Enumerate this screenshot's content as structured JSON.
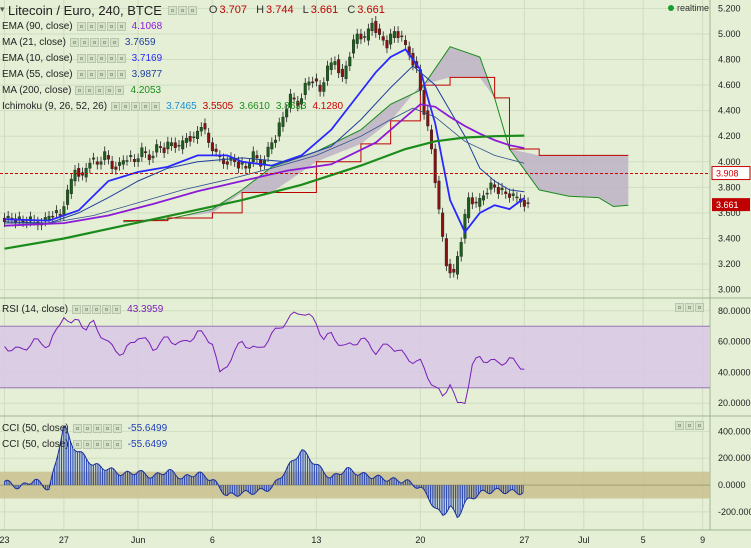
{
  "header": {
    "title": "Litecoin / Euro, 240, BTCE",
    "ohlc": [
      {
        "label": "O",
        "value": "3.707"
      },
      {
        "label": "H",
        "value": "3.744"
      },
      {
        "label": "L",
        "value": "3.661"
      },
      {
        "label": "C",
        "value": "3.661"
      }
    ],
    "realtime_label": "realtime"
  },
  "indicators": [
    {
      "name": "EMA (90, close)",
      "values": [
        {
          "text": "4.1068",
          "color": "#8c1ad6"
        }
      ]
    },
    {
      "name": "MA (21, close)",
      "values": [
        {
          "text": "3.7659",
          "color": "#1f3f9e"
        }
      ]
    },
    {
      "name": "EMA (10, close)",
      "values": [
        {
          "text": "3.7169",
          "color": "#2929ff"
        }
      ]
    },
    {
      "name": "EMA (55, close)",
      "values": [
        {
          "text": "3.9877",
          "color": "#1f3f9e"
        }
      ]
    },
    {
      "name": "MA (200, close)",
      "values": [
        {
          "text": "4.2053",
          "color": "#1b8c1b"
        }
      ]
    },
    {
      "name": "Ichimoku (9, 26, 52, 26)",
      "values": [
        {
          "text": "3.7465",
          "color": "#1a8fd6"
        },
        {
          "text": "3.5505",
          "color": "#c00000"
        },
        {
          "text": "3.6610",
          "color": "#1b8c1b"
        },
        {
          "text": "3.8633",
          "color": "#1b8c1b"
        },
        {
          "text": "4.1280",
          "color": "#d00000"
        }
      ]
    }
  ],
  "rsi_legend": {
    "name": "RSI (14, close)",
    "value": "43.3959",
    "color": "#7a1fb8"
  },
  "cci_legends": [
    {
      "name": "CCI (50, close)",
      "value": "-55.6499",
      "color": "#1f3fb8"
    },
    {
      "name": "CCI (50, close)",
      "value": "-55.6499",
      "color": "#1f3fb8"
    }
  ],
  "colors": {
    "background": "#e4efd6",
    "grid": "#cfddc1",
    "candle_up": "#1a5f1a",
    "candle_down": "#8a1010",
    "ema90": "#8c1ad6",
    "ema10": "#2929ff",
    "ma21": "#1f3f9e",
    "ma200": "#1b8c1b",
    "kijun": "#c00000",
    "senkou_b": "#c00000",
    "cloud": "#b9a9c4",
    "rsi": "#7a1fb8",
    "rsi_band": "#d8c9e6",
    "cci": "#1f3fb8",
    "cci_band": "#c9c08f"
  },
  "chart_data": [
    {
      "type": "line",
      "title": "Litecoin / Euro, 240, BTCE",
      "x_ticks": [
        "23",
        "27",
        "Jun",
        "6",
        "13",
        "20",
        "27",
        "Jul",
        "5",
        "9"
      ],
      "x_tick_days": [
        -8,
        -4,
        1,
        6,
        13,
        20,
        27,
        31,
        35,
        39
      ],
      "x_range": [
        -8.3,
        39.5
      ],
      "ylim": [
        2.95,
        5.25
      ],
      "y_ticks": [
        "3.000",
        "3.200",
        "3.400",
        "3.600",
        "3.800",
        "4.000",
        "4.200",
        "4.400",
        "4.600",
        "4.800",
        "5.000",
        "5.200"
      ],
      "y_tick_values": [
        3.0,
        3.2,
        3.4,
        3.6,
        3.8,
        4.0,
        4.2,
        4.4,
        4.6,
        4.8,
        5.0,
        5.2
      ],
      "reference_line": {
        "value": 3.908,
        "label": "3.908"
      },
      "last_price": {
        "value": 3.661,
        "label": "3.661"
      },
      "grid": true,
      "series": [
        {
          "name": "EMA (10, close)",
          "x": [
            -8,
            -5,
            -3,
            -1,
            1,
            3,
            5,
            7,
            8,
            10,
            12,
            14,
            16,
            17,
            18,
            19,
            20,
            20.5,
            21,
            21.5,
            22,
            23,
            24,
            25,
            26,
            27
          ],
          "y": [
            3.55,
            3.54,
            3.62,
            3.85,
            3.92,
            3.96,
            4.05,
            4.05,
            4.0,
            3.97,
            4.05,
            4.25,
            4.55,
            4.7,
            4.82,
            4.88,
            4.72,
            4.5,
            4.3,
            4.0,
            3.7,
            3.45,
            3.6,
            3.66,
            3.63,
            3.717
          ]
        },
        {
          "name": "MA (21, close)",
          "x": [
            -8,
            -5,
            -3,
            -1,
            1,
            3,
            5,
            8,
            11,
            14,
            16,
            18,
            19.5,
            21,
            22,
            23,
            24,
            25,
            26,
            27
          ],
          "y": [
            3.53,
            3.52,
            3.6,
            3.72,
            3.85,
            3.95,
            4.0,
            4.03,
            4.0,
            4.12,
            4.33,
            4.58,
            4.75,
            4.6,
            4.4,
            4.2,
            3.95,
            3.85,
            3.78,
            3.766
          ]
        },
        {
          "name": "EMA (55, close)",
          "x": [
            -8,
            -5,
            -2,
            1,
            4,
            7,
            10,
            13,
            16,
            18,
            19.5,
            21,
            23,
            25,
            27
          ],
          "y": [
            3.52,
            3.52,
            3.58,
            3.68,
            3.78,
            3.86,
            3.95,
            4.05,
            4.2,
            4.33,
            4.42,
            4.35,
            4.16,
            4.05,
            3.988
          ]
        },
        {
          "name": "EMA (90, close)",
          "x": [
            -8,
            -4,
            -1,
            2,
            5,
            8,
            11,
            14,
            17,
            19,
            20,
            21,
            22,
            23,
            24,
            25,
            26,
            27
          ],
          "y": [
            3.5,
            3.52,
            3.58,
            3.67,
            3.77,
            3.85,
            3.93,
            3.98,
            4.15,
            4.35,
            4.45,
            4.43,
            4.35,
            4.28,
            4.22,
            4.17,
            4.13,
            4.107
          ]
        },
        {
          "name": "MA (200, close)",
          "x": [
            -8,
            -4,
            0,
            4,
            8,
            12,
            16,
            19,
            21,
            23,
            25,
            27
          ],
          "y": [
            3.32,
            3.4,
            3.5,
            3.6,
            3.7,
            3.82,
            3.97,
            4.1,
            4.16,
            4.19,
            4.2,
            4.205
          ]
        },
        {
          "name": "Senkou A",
          "x": [
            0,
            3,
            6,
            8,
            10,
            13,
            16,
            18,
            20,
            22,
            24,
            25,
            26,
            28,
            30,
            32,
            33,
            34
          ],
          "y": [
            3.53,
            3.55,
            3.63,
            3.78,
            3.96,
            4.08,
            4.25,
            4.45,
            4.56,
            4.9,
            4.82,
            4.5,
            4.1,
            3.78,
            3.73,
            3.72,
            3.65,
            3.66
          ]
        },
        {
          "name": "Senkou B",
          "x": [
            0,
            3,
            6,
            8,
            10,
            13,
            16,
            18,
            20,
            22,
            24,
            25,
            26,
            28,
            30,
            32,
            33,
            34
          ],
          "y": [
            3.54,
            3.56,
            3.6,
            3.76,
            3.76,
            4.0,
            4.14,
            4.32,
            4.6,
            4.66,
            4.66,
            4.5,
            4.1,
            4.05,
            4.05,
            4.05,
            4.05,
            4.05
          ]
        }
      ],
      "ohlc_x": [
        -8,
        -7.5,
        -7,
        -6.5,
        -6,
        -5.5,
        -5,
        -4.5,
        -4,
        -3.5,
        -3,
        -2.5,
        -2,
        -1.5,
        -1,
        -0.5,
        0,
        0.5,
        1,
        1.5,
        2,
        2.5,
        3,
        3.5,
        4,
        4.5,
        5,
        5.5,
        6,
        6.5,
        7,
        7.5,
        8,
        8.5,
        9,
        9.5,
        10,
        10.5,
        11,
        11.5,
        12,
        12.5,
        13,
        13.5,
        14,
        14.5,
        15,
        15.5,
        16,
        16.5,
        17,
        17.5,
        18,
        18.5,
        19,
        19.5,
        20,
        20.5,
        21,
        21.5,
        22,
        22.5,
        23,
        23.5,
        24,
        24.5,
        25,
        25.5,
        26,
        26.5,
        27
      ],
      "close_path": [
        3.56,
        3.55,
        3.53,
        3.54,
        3.52,
        3.55,
        3.6,
        3.58,
        3.75,
        3.95,
        3.88,
        4.02,
        3.98,
        4.05,
        3.96,
        3.98,
        4.04,
        4.0,
        4.08,
        4.03,
        4.12,
        4.1,
        4.15,
        4.1,
        4.2,
        4.18,
        4.3,
        4.15,
        4.05,
        4.0,
        4.02,
        3.98,
        3.95,
        4.05,
        3.98,
        4.1,
        4.2,
        4.35,
        4.5,
        4.45,
        4.6,
        4.65,
        4.55,
        4.72,
        4.8,
        4.65,
        4.85,
        5.0,
        4.95,
        5.1,
        4.98,
        4.92,
        5.02,
        4.95,
        4.85,
        4.72,
        4.4,
        4.1,
        3.6,
        3.2,
        3.12,
        3.4,
        3.72,
        3.65,
        3.75,
        3.82,
        3.78,
        3.75,
        3.72,
        3.7,
        3.661
      ]
    },
    {
      "type": "line",
      "title": "RSI (14, close)",
      "x_range": [
        -8.3,
        39.5
      ],
      "ylim": [
        13,
        87
      ],
      "y_ticks": [
        "20.0000",
        "40.0000",
        "60.0000",
        "80.0000"
      ],
      "y_tick_values": [
        20,
        40,
        60,
        80
      ],
      "band": [
        30,
        70
      ],
      "series": [
        {
          "name": "RSI (14, close)",
          "x": [
            -8,
            -7,
            -6,
            -5,
            -4.5,
            -4,
            -3.5,
            -3,
            -2.5,
            -2,
            -1.5,
            -1,
            0,
            1,
            2,
            3,
            4,
            5,
            6,
            6.5,
            7,
            8,
            9,
            10,
            11,
            12,
            13,
            13.5,
            14,
            15,
            16,
            17,
            18,
            19,
            20,
            20.5,
            21,
            21.5,
            22,
            22.5,
            23,
            23.5,
            24,
            25,
            26,
            27
          ],
          "y": [
            57,
            54,
            60,
            58,
            66,
            78,
            70,
            75,
            68,
            72,
            65,
            58,
            52,
            64,
            56,
            62,
            58,
            66,
            60,
            38,
            46,
            60,
            54,
            64,
            74,
            80,
            72,
            62,
            64,
            56,
            62,
            54,
            58,
            50,
            46,
            38,
            30,
            24,
            34,
            18,
            22,
            44,
            50,
            46,
            48,
            43.4
          ]
        }
      ]
    },
    {
      "type": "bar",
      "title": "CCI (50, close)",
      "x_range": [
        -8.3,
        39.5
      ],
      "ylim": [
        -320,
        500
      ],
      "y_ticks": [
        "-200.0000",
        "0.0000",
        "200.0000",
        "400.0000"
      ],
      "y_tick_values": [
        -200,
        0,
        200,
        400
      ],
      "band": [
        -100,
        100
      ],
      "series": [
        {
          "name": "CCI (50, close)",
          "x": [
            -8,
            -7,
            -6,
            -5,
            -4.5,
            -4,
            -3.5,
            -3,
            -2.5,
            -2,
            -1,
            0,
            1,
            2,
            3,
            4,
            5,
            6,
            7,
            8,
            9,
            10,
            11,
            12,
            13,
            14,
            15,
            16,
            17,
            18,
            19,
            20,
            20.5,
            21,
            21.5,
            22,
            22.5,
            23,
            24,
            25,
            26,
            27
          ],
          "y": [
            30,
            -20,
            40,
            -30,
            180,
            460,
            300,
            250,
            200,
            150,
            120,
            80,
            100,
            60,
            110,
            50,
            90,
            40,
            -80,
            -60,
            -50,
            -20,
            120,
            260,
            150,
            50,
            120,
            80,
            60,
            40,
            30,
            -20,
            -80,
            -180,
            -220,
            -160,
            -240,
            -130,
            -60,
            -40,
            -50,
            -55.6
          ]
        }
      ]
    }
  ]
}
